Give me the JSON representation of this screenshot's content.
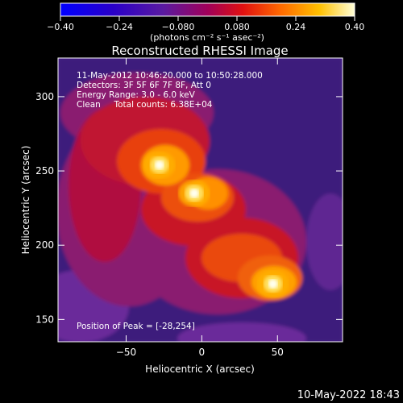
{
  "chart_data": {
    "type": "heatmap",
    "title": "Reconstructed RHESSI Image",
    "annotation_lines": [
      "11-May-2012 10:46:20.000 to 10:50:28.000",
      "Detectors: 3F 5F 6F 7F 8F, Att 0",
      "Energy Range: 3.0 - 6.0 keV",
      "Clean     Total counts: 6.38E+04"
    ],
    "peak_label": "Position of Peak = [-28,254]",
    "peak": [
      -28,
      254
    ],
    "xlabel": "Heliocentric X (arcsec)",
    "ylabel": "Heliocentric Y (arcsec)",
    "xlim": [
      -95,
      93
    ],
    "ylim": [
      135,
      326
    ],
    "xticks": [
      -50,
      0,
      50
    ],
    "yticks": [
      150,
      200,
      250,
      300
    ],
    "colorbar": {
      "range": [
        -0.4,
        0.4
      ],
      "ticks": [
        "-0.40",
        "-0.24",
        "-0.080",
        "0.080",
        "0.24",
        "0.40"
      ],
      "unit": "(photons cm⁻² s⁻¹ asec⁻²)"
    },
    "sources": [
      {
        "x": -28,
        "y": 254,
        "value": 0.38
      },
      {
        "x": -5,
        "y": 235,
        "value": 0.34
      },
      {
        "x": 47,
        "y": 174,
        "value": 0.37
      }
    ]
  },
  "footer_date": "10-May-2022 18:43"
}
